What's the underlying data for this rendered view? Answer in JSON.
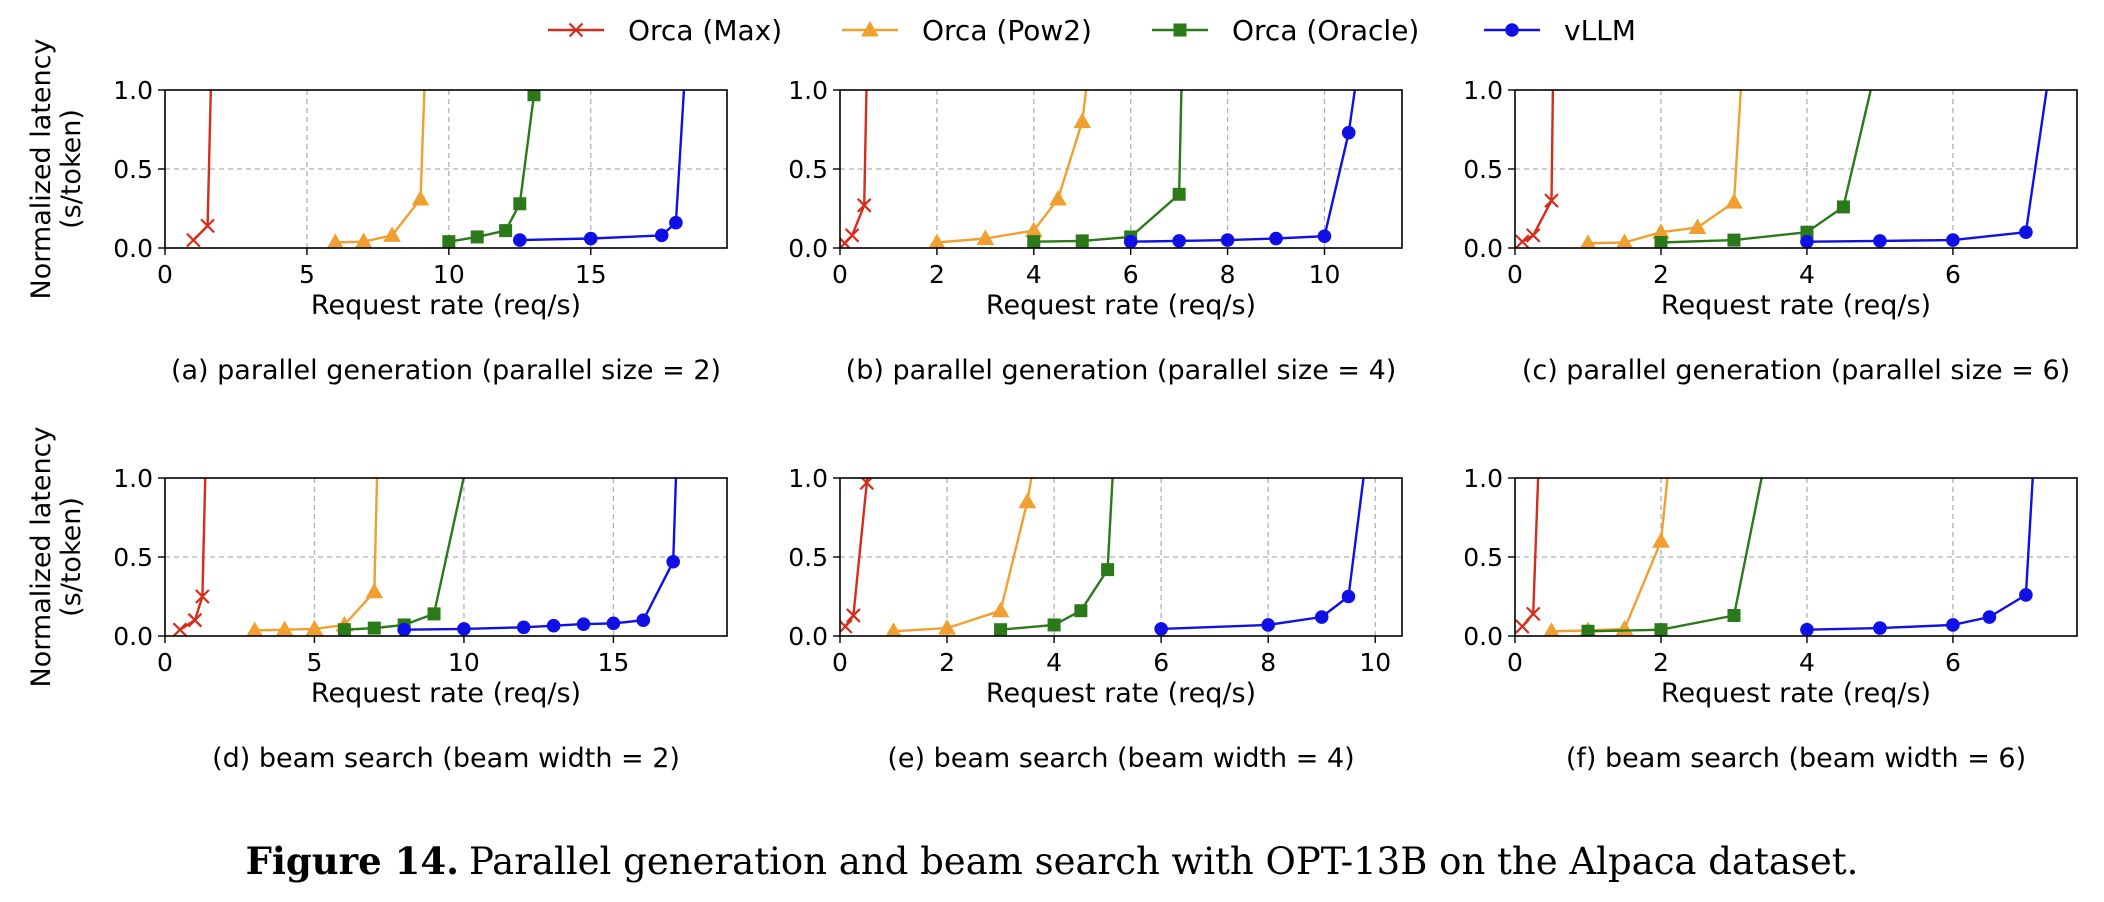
{
  "legend": [
    {
      "name": "Orca (Max)",
      "color": "#d62c1a",
      "marker": "x"
    },
    {
      "name": "Orca (Pow2)",
      "color": "#f0a030",
      "marker": "triangle"
    },
    {
      "name": "Orca (Oracle)",
      "color": "#2a7a1a",
      "marker": "square"
    },
    {
      "name": "vLLM",
      "color": "#1010e6",
      "marker": "circle"
    }
  ],
  "caption": {
    "label": "Figure 14.",
    "text": "Parallel generation and beam search with OPT-13B on the Alpaca dataset."
  },
  "chart_data": [
    {
      "type": "line",
      "subcaption": "(a) parallel generation (parallel size = 2)",
      "xlabel": "Request rate (req/s)",
      "ylabel": [
        "Normalized latency",
        "(s/token)"
      ],
      "xlim": [
        0,
        19.8
      ],
      "ylim": [
        0,
        1.0
      ],
      "xticks": [
        0,
        5,
        10,
        15
      ],
      "yticks": [
        0.0,
        0.5,
        1.0
      ],
      "series": [
        {
          "name": "Orca (Max)",
          "x": [
            1.0,
            1.5,
            1.62
          ],
          "y": [
            0.05,
            0.14,
            1.05
          ]
        },
        {
          "name": "Orca (Pow2)",
          "x": [
            6,
            7,
            8,
            9,
            9.15
          ],
          "y": [
            0.035,
            0.04,
            0.08,
            0.31,
            1.05
          ]
        },
        {
          "name": "Orca (Oracle)",
          "x": [
            10,
            11,
            12,
            12.5,
            13,
            13.15
          ],
          "y": [
            0.04,
            0.07,
            0.11,
            0.28,
            0.97,
            1.05
          ]
        },
        {
          "name": "vLLM",
          "x": [
            12.5,
            15,
            17.5,
            18,
            18.3
          ],
          "y": [
            0.05,
            0.06,
            0.08,
            0.16,
            1.05
          ]
        }
      ]
    },
    {
      "type": "line",
      "subcaption": "(b) parallel generation (parallel size = 4)",
      "xlabel": "Request rate (req/s)",
      "ylabel": [],
      "xlim": [
        0,
        11.6
      ],
      "ylim": [
        0,
        1.0
      ],
      "xticks": [
        0,
        2,
        4,
        6,
        8,
        10
      ],
      "yticks": [
        0.0,
        0.5,
        1.0
      ],
      "series": [
        {
          "name": "Orca (Max)",
          "x": [
            0.1,
            0.25,
            0.5,
            0.55
          ],
          "y": [
            0.03,
            0.08,
            0.27,
            1.05
          ]
        },
        {
          "name": "Orca (Pow2)",
          "x": [
            2,
            3,
            4,
            4.5,
            5,
            5.1
          ],
          "y": [
            0.035,
            0.06,
            0.11,
            0.31,
            0.8,
            1.05
          ]
        },
        {
          "name": "Orca (Oracle)",
          "x": [
            4,
            5,
            6,
            7,
            7.05
          ],
          "y": [
            0.04,
            0.045,
            0.07,
            0.34,
            1.05
          ]
        },
        {
          "name": "vLLM",
          "x": [
            6,
            7,
            8,
            9,
            10,
            10.5,
            10.65
          ],
          "y": [
            0.04,
            0.045,
            0.05,
            0.06,
            0.075,
            0.73,
            1.05
          ]
        }
      ]
    },
    {
      "type": "line",
      "subcaption": "(c) parallel generation (parallel size = 6)",
      "xlabel": "Request rate (req/s)",
      "ylabel": [],
      "xlim": [
        0,
        7.7
      ],
      "ylim": [
        0,
        1.0
      ],
      "xticks": [
        0,
        2,
        4,
        6
      ],
      "yticks": [
        0.0,
        0.5,
        1.0
      ],
      "series": [
        {
          "name": "Orca (Max)",
          "x": [
            0.1,
            0.25,
            0.5,
            0.52
          ],
          "y": [
            0.04,
            0.08,
            0.3,
            1.05
          ]
        },
        {
          "name": "Orca (Pow2)",
          "x": [
            1,
            1.5,
            2,
            2.5,
            3,
            3.1
          ],
          "y": [
            0.03,
            0.035,
            0.1,
            0.13,
            0.29,
            1.05
          ]
        },
        {
          "name": "Orca (Oracle)",
          "x": [
            2,
            3,
            4,
            4.5,
            4.9
          ],
          "y": [
            0.035,
            0.05,
            0.1,
            0.26,
            1.05
          ]
        },
        {
          "name": "vLLM",
          "x": [
            4,
            5,
            6,
            7,
            7.3
          ],
          "y": [
            0.04,
            0.045,
            0.05,
            0.1,
            1.05
          ]
        }
      ]
    },
    {
      "type": "line",
      "subcaption": "(d) beam search (beam width = 2)",
      "xlabel": "Request rate (req/s)",
      "ylabel": [
        "Normalized latency",
        "(s/token)"
      ],
      "xlim": [
        0,
        18.8
      ],
      "ylim": [
        0,
        1.0
      ],
      "xticks": [
        0,
        5,
        10,
        15
      ],
      "yticks": [
        0.0,
        0.5,
        1.0
      ],
      "series": [
        {
          "name": "Orca (Max)",
          "x": [
            0.5,
            1.0,
            1.25,
            1.35
          ],
          "y": [
            0.04,
            0.1,
            0.25,
            1.05
          ]
        },
        {
          "name": "Orca (Pow2)",
          "x": [
            3,
            4,
            5,
            6,
            7,
            7.1
          ],
          "y": [
            0.035,
            0.04,
            0.045,
            0.07,
            0.28,
            1.05
          ]
        },
        {
          "name": "Orca (Oracle)",
          "x": [
            6,
            7,
            8,
            9,
            10.05
          ],
          "y": [
            0.04,
            0.05,
            0.07,
            0.14,
            1.05
          ]
        },
        {
          "name": "vLLM",
          "x": [
            8,
            10,
            12,
            13,
            14,
            15,
            16,
            17,
            17.1
          ],
          "y": [
            0.04,
            0.045,
            0.055,
            0.065,
            0.075,
            0.08,
            0.1,
            0.47,
            1.05
          ]
        }
      ]
    },
    {
      "type": "line",
      "subcaption": "(e) beam search (beam width = 4)",
      "xlabel": "Request rate (req/s)",
      "ylabel": [],
      "xlim": [
        0,
        10.5
      ],
      "ylim": [
        0,
        1.0
      ],
      "xticks": [
        0,
        2,
        4,
        6,
        8,
        10
      ],
      "yticks": [
        0.0,
        0.5,
        1.0
      ],
      "series": [
        {
          "name": "Orca (Max)",
          "x": [
            0.1,
            0.25,
            0.5,
            0.53
          ],
          "y": [
            0.06,
            0.13,
            0.97,
            1.05
          ]
        },
        {
          "name": "Orca (Pow2)",
          "x": [
            1,
            2,
            3,
            3.5,
            3.6
          ],
          "y": [
            0.03,
            0.05,
            0.16,
            0.85,
            1.05
          ]
        },
        {
          "name": "Orca (Oracle)",
          "x": [
            3,
            4,
            4.5,
            5,
            5.1
          ],
          "y": [
            0.04,
            0.07,
            0.16,
            0.42,
            1.05
          ]
        },
        {
          "name": "vLLM",
          "x": [
            6,
            8,
            9,
            9.5,
            9.8
          ],
          "y": [
            0.045,
            0.07,
            0.12,
            0.25,
            1.05
          ]
        }
      ]
    },
    {
      "type": "line",
      "subcaption": "(f) beam search (beam width = 6)",
      "xlabel": "Request rate (req/s)",
      "ylabel": [],
      "xlim": [
        0,
        7.7
      ],
      "ylim": [
        0,
        1.0
      ],
      "xticks": [
        0,
        2,
        4,
        6
      ],
      "yticks": [
        0.0,
        0.5,
        1.0
      ],
      "series": [
        {
          "name": "Orca (Max)",
          "x": [
            0.1,
            0.25,
            0.32
          ],
          "y": [
            0.06,
            0.14,
            1.05
          ]
        },
        {
          "name": "Orca (Pow2)",
          "x": [
            0.5,
            1,
            1.5,
            2,
            2.1
          ],
          "y": [
            0.03,
            0.035,
            0.045,
            0.6,
            1.05
          ]
        },
        {
          "name": "Orca (Oracle)",
          "x": [
            1,
            2,
            3,
            3.4
          ],
          "y": [
            0.03,
            0.04,
            0.13,
            1.05
          ]
        },
        {
          "name": "vLLM",
          "x": [
            4,
            5,
            6,
            6.5,
            7,
            7.1
          ],
          "y": [
            0.04,
            0.05,
            0.07,
            0.12,
            0.26,
            1.05
          ]
        }
      ]
    }
  ]
}
